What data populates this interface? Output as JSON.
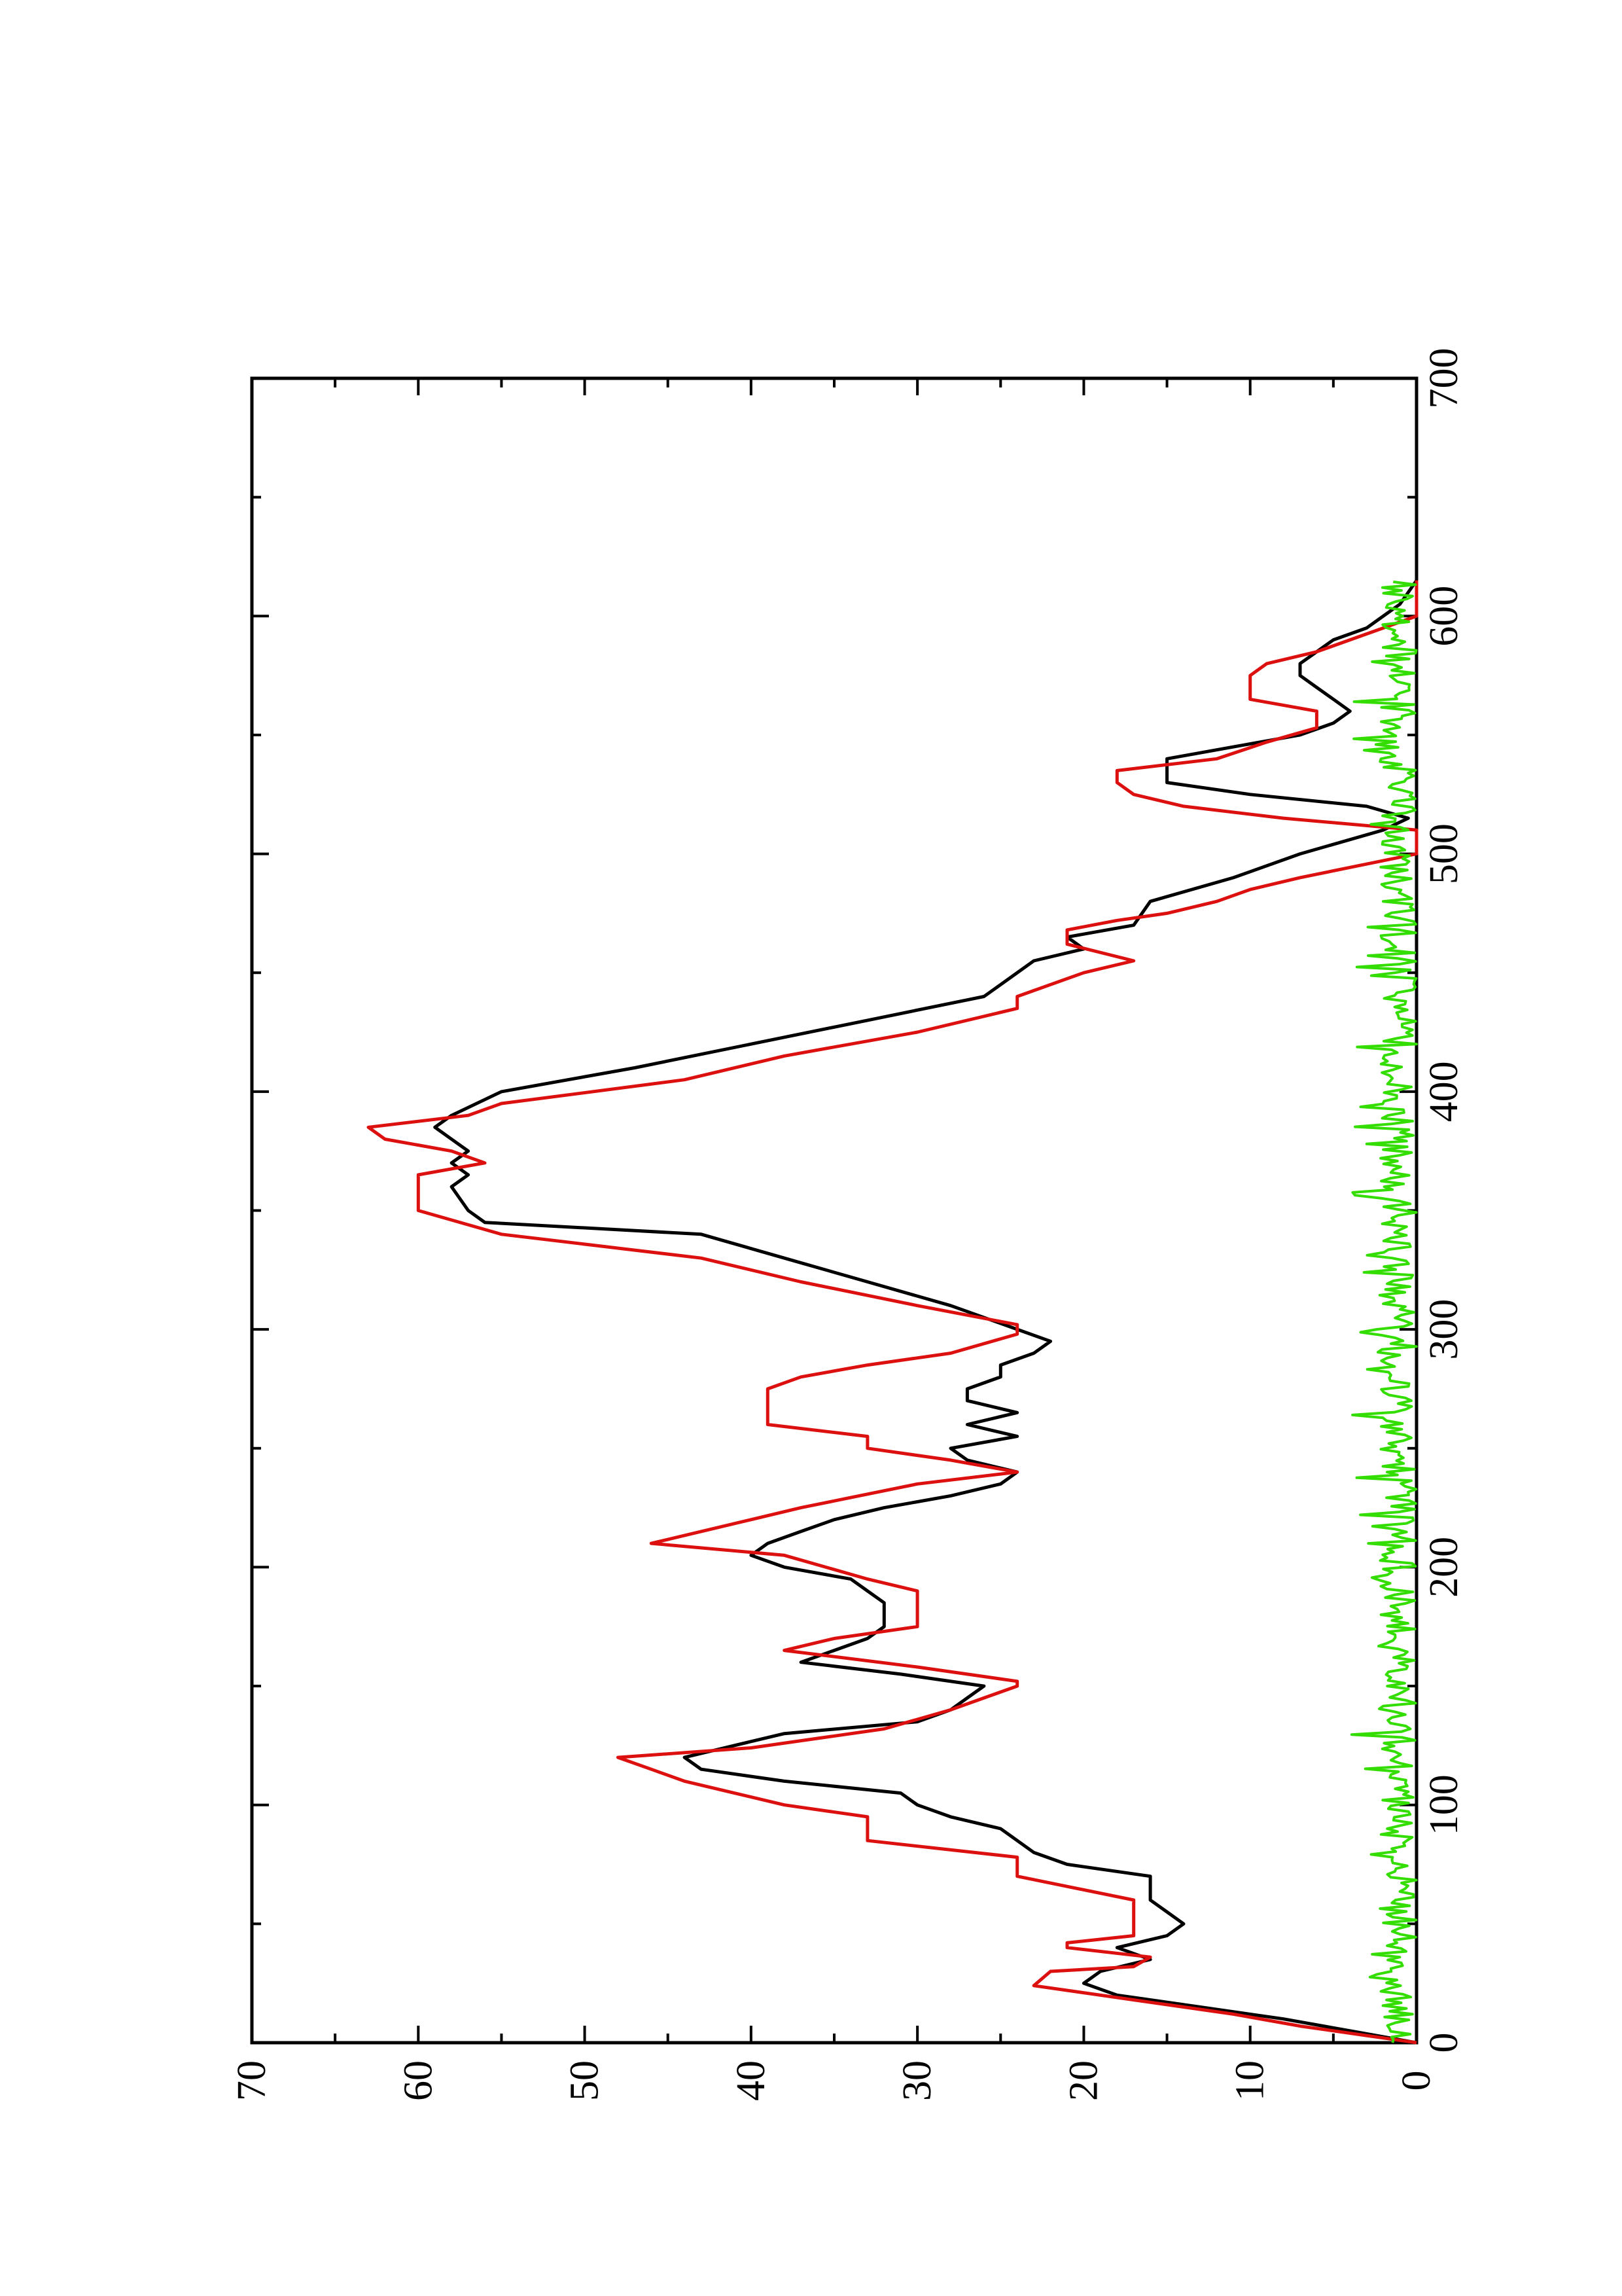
{
  "chart_data": {
    "type": "line",
    "orientation": "rotated-90-clockwise",
    "title": "",
    "xlabel": "",
    "ylabel": "",
    "xlim": [
      0,
      700
    ],
    "ylim": [
      0,
      70
    ],
    "x_ticks_major": [
      0,
      100,
      200,
      300,
      400,
      500,
      600,
      700
    ],
    "y_ticks_major": [
      0,
      10,
      20,
      30,
      40,
      50,
      60,
      70
    ],
    "x_tick_labels": [
      "0",
      "100",
      "200",
      "300",
      "400",
      "500",
      "600",
      "700"
    ],
    "y_tick_labels": [
      "0",
      "10",
      "20",
      "30",
      "40",
      "50",
      "60",
      "70"
    ],
    "grid": false,
    "legend": "none",
    "series": [
      {
        "color": "#000000",
        "style": "smooth",
        "x": [
          0,
          5,
          10,
          15,
          20,
          25,
          30,
          35,
          40,
          45,
          50,
          55,
          60,
          70,
          75,
          80,
          90,
          95,
          100,
          105,
          110,
          115,
          120,
          130,
          135,
          140,
          145,
          150,
          155,
          160,
          165,
          170,
          175,
          185,
          190,
          195,
          200,
          205,
          210,
          215,
          220,
          225,
          230,
          235,
          240,
          245,
          250,
          255,
          260,
          265,
          270,
          275,
          280,
          285,
          290,
          295,
          300,
          310,
          320,
          330,
          340,
          345,
          350,
          360,
          365,
          370,
          375,
          380,
          385,
          390,
          400,
          410,
          420,
          430,
          440,
          450,
          455,
          460,
          465,
          470,
          480,
          490,
          500,
          510,
          515,
          520,
          525,
          530,
          540,
          545,
          550,
          555,
          560,
          565,
          570,
          575,
          580,
          585,
          590,
          595,
          600,
          605,
          610,
          615
        ],
        "y": [
          0,
          4,
          8,
          13,
          18,
          20,
          19,
          16,
          18,
          15,
          14,
          15,
          16,
          16,
          21,
          23,
          25,
          28,
          30,
          31,
          38,
          43,
          44,
          38,
          30,
          28,
          27,
          26,
          31,
          37,
          35,
          33,
          32,
          32,
          33,
          34,
          38,
          40,
          39,
          37,
          35,
          32,
          28,
          25,
          24,
          27,
          28,
          24,
          27,
          24,
          27,
          27,
          25,
          25,
          23,
          22,
          24,
          28,
          33,
          38,
          43,
          56,
          57,
          58,
          57,
          58,
          57,
          58,
          59,
          58,
          55,
          47,
          40,
          33,
          26,
          24,
          23,
          20,
          21,
          17,
          16,
          11,
          7,
          2,
          0.5,
          3,
          10,
          15,
          15,
          11,
          7,
          5,
          4,
          5,
          6,
          7,
          7,
          6,
          5,
          3,
          2,
          1,
          0.5,
          0
        ]
      },
      {
        "color": "#dd1010",
        "style": "step",
        "x": [
          0,
          3,
          7,
          12,
          18,
          24,
          30,
          32,
          36,
          40,
          42,
          45,
          50,
          60,
          70,
          78,
          85,
          95,
          100,
          110,
          115,
          120,
          124,
          132,
          140,
          150,
          152,
          158,
          165,
          170,
          175,
          190,
          195,
          205,
          210,
          220,
          225,
          235,
          240,
          245,
          250,
          255,
          260,
          275,
          280,
          285,
          290,
          298,
          302,
          310,
          320,
          330,
          340,
          350,
          360,
          365,
          370,
          375,
          380,
          385,
          390,
          395,
          405,
          415,
          425,
          435,
          440,
          450,
          455,
          462,
          468,
          472,
          475,
          480,
          485,
          490,
          500,
          510,
          515,
          520,
          525,
          530,
          535,
          540,
          547,
          553,
          560,
          565,
          570,
          575,
          580,
          585,
          590,
          595,
          600,
          605,
          610,
          615
        ],
        "y": [
          0,
          3,
          7,
          11,
          17,
          23,
          22,
          17,
          16,
          21,
          21,
          17,
          17,
          17,
          24,
          24,
          33,
          33,
          38,
          44,
          46,
          48,
          40,
          32,
          28,
          24,
          24,
          30,
          38,
          35,
          30,
          30,
          33,
          38,
          46,
          40,
          37,
          30,
          24,
          28,
          33,
          33,
          39,
          39,
          37,
          33,
          28,
          24,
          24,
          30,
          37,
          43,
          55,
          60,
          60,
          60,
          56,
          58,
          62,
          63,
          57,
          55,
          44,
          38,
          30,
          24,
          24,
          20,
          17,
          21,
          21,
          18,
          15,
          12,
          10,
          7,
          0,
          0,
          8,
          14,
          17,
          18,
          18,
          12,
          9,
          6,
          6,
          10,
          10,
          10,
          9,
          6,
          4,
          2,
          0,
          0,
          0,
          0
        ]
      },
      {
        "color": "#33dd00",
        "style": "noisy",
        "x_range": [
          0,
          615
        ],
        "y_range": [
          0,
          4
        ]
      }
    ]
  }
}
